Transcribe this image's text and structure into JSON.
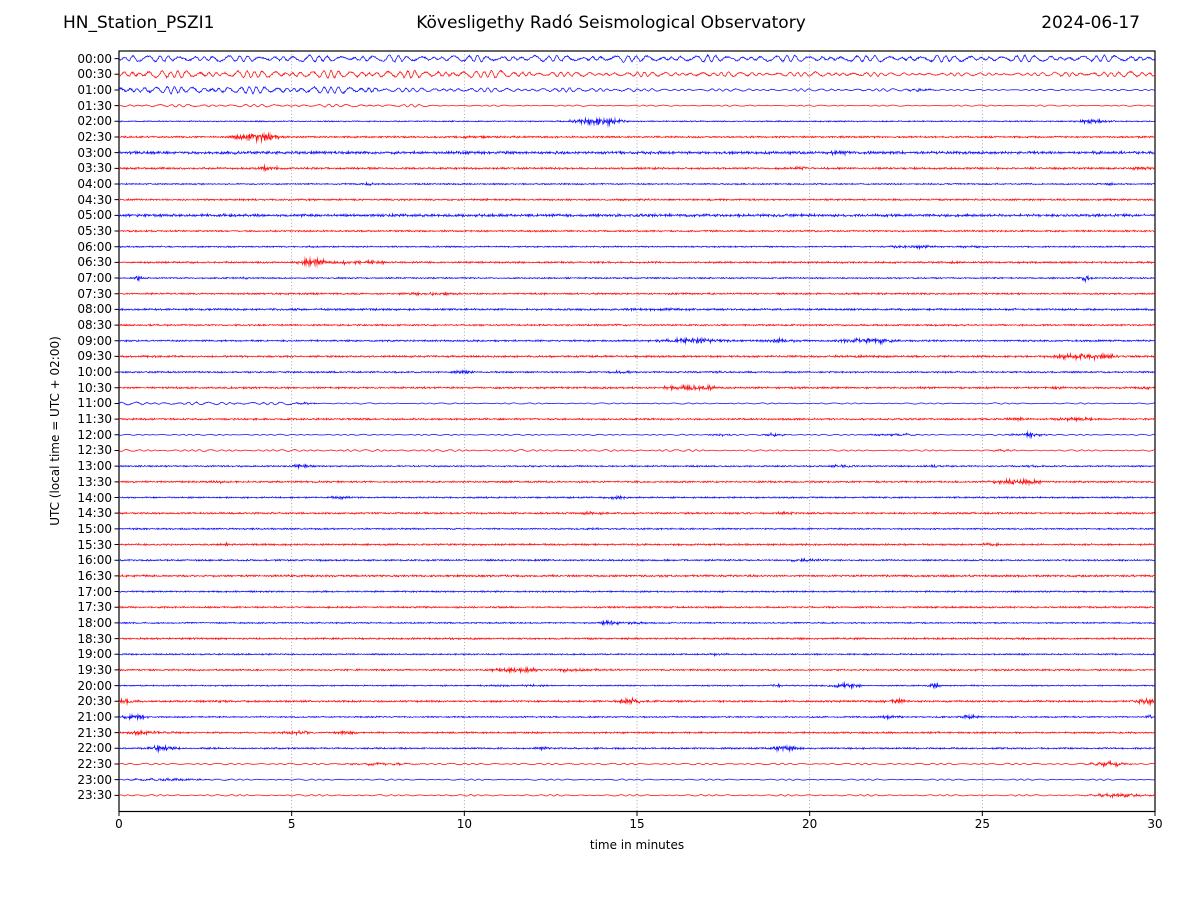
{
  "chart_data": {
    "type": "line",
    "subtype": "helicorder-daily-seismogram",
    "station": "HN_Station_PSZI1",
    "title": "Kövesligethy Radó Seismological Observatory",
    "date": "2024-06-17",
    "xlabel": "time in minutes",
    "ylabel": "UTC (local time = UTC + 02:00)",
    "xlim": [
      0,
      30
    ],
    "x_ticks": [
      0,
      5,
      10,
      15,
      20,
      25,
      30
    ],
    "grid_minutes": [
      5,
      10,
      15,
      20,
      25
    ],
    "grid_style": "dotted-vertical",
    "minutes_per_row": 30,
    "trace_colors": {
      "even_rows": "#0000ff",
      "odd_rows": "#ff0000"
    },
    "rows": [
      {
        "t": "00:00",
        "mode": "wave",
        "amp": [
          [
            0,
            30,
            3.4
          ]
        ],
        "events": []
      },
      {
        "t": "00:30",
        "mode": "wave",
        "amp": [
          [
            0,
            12,
            3.8
          ],
          [
            12,
            22,
            2.4
          ],
          [
            22,
            27,
            1.7
          ],
          [
            27,
            30,
            2.8
          ]
        ],
        "events": []
      },
      {
        "t": "01:00",
        "mode": "wave",
        "amp": [
          [
            0,
            7.5,
            3.6
          ],
          [
            7.5,
            15,
            2.1
          ],
          [
            15,
            23.5,
            1.3
          ],
          [
            23.5,
            30,
            0.8
          ]
        ],
        "events": [
          [
            23.2,
            0.3,
            1.2
          ]
        ]
      },
      {
        "t": "01:30",
        "mode": "wave",
        "amp": [
          [
            0,
            9,
            1.4
          ],
          [
            9,
            30,
            0.65
          ]
        ],
        "events": []
      },
      {
        "t": "02:00",
        "mode": "fuzz",
        "amp": [
          [
            0,
            30,
            0.5
          ]
        ],
        "events": [
          [
            13.9,
            0.7,
            3.4
          ],
          [
            28.2,
            0.6,
            1.5
          ]
        ]
      },
      {
        "t": "02:30",
        "mode": "fuzz",
        "amp": [
          [
            0,
            30,
            0.75
          ]
        ],
        "events": [
          [
            4.0,
            0.55,
            4.3
          ],
          [
            10.5,
            0.8,
            0.6
          ]
        ]
      },
      {
        "t": "03:00",
        "mode": "fuzz",
        "amp": [
          [
            0,
            30,
            1.15
          ]
        ],
        "events": [
          [
            3.4,
            0.3,
            0.8
          ],
          [
            20.9,
            0.4,
            1.1
          ]
        ]
      },
      {
        "t": "03:30",
        "mode": "fuzz",
        "amp": [
          [
            0,
            30,
            0.85
          ]
        ],
        "events": [
          [
            4.25,
            0.3,
            1.9
          ],
          [
            19.8,
            0.3,
            1.3
          ],
          [
            29.6,
            0.3,
            0.9
          ]
        ]
      },
      {
        "t": "04:00",
        "mode": "fuzz",
        "amp": [
          [
            0,
            30,
            0.6
          ]
        ],
        "events": [
          [
            7.2,
            0.2,
            0.9
          ],
          [
            28.7,
            0.15,
            1.1
          ]
        ]
      },
      {
        "t": "04:30",
        "mode": "fuzz",
        "amp": [
          [
            0,
            30,
            0.75
          ]
        ],
        "events": []
      },
      {
        "t": "05:00",
        "mode": "fuzz",
        "amp": [
          [
            0,
            30,
            1.15
          ]
        ],
        "events": []
      },
      {
        "t": "05:30",
        "mode": "fuzz",
        "amp": [
          [
            0,
            30,
            0.7
          ]
        ],
        "events": []
      },
      {
        "t": "06:00",
        "mode": "fuzz",
        "amp": [
          [
            0,
            30,
            0.6
          ]
        ],
        "events": [
          [
            3.3,
            0.1,
            0.7
          ],
          [
            5.6,
            0.1,
            0.7
          ],
          [
            23.1,
            0.7,
            1.3
          ],
          [
            24.6,
            0.3,
            1.2
          ]
        ]
      },
      {
        "t": "06:30",
        "mode": "fuzz",
        "amp": [
          [
            0,
            30,
            0.75
          ]
        ],
        "events": [
          [
            5.6,
            0.3,
            4.0
          ],
          [
            6.9,
            1.1,
            1.3
          ],
          [
            24.3,
            0.3,
            1.0
          ]
        ]
      },
      {
        "t": "07:00",
        "mode": "fuzz",
        "amp": [
          [
            0,
            30,
            0.6
          ]
        ],
        "events": [
          [
            0.55,
            0.12,
            2.5
          ],
          [
            3.6,
            0.1,
            1.1
          ],
          [
            28.0,
            0.12,
            3.0
          ]
        ]
      },
      {
        "t": "07:30",
        "mode": "fuzz",
        "amp": [
          [
            0,
            30,
            0.75
          ]
        ],
        "events": [
          [
            9.0,
            0.8,
            1.0
          ]
        ]
      },
      {
        "t": "08:00",
        "mode": "fuzz",
        "amp": [
          [
            0,
            30,
            0.8
          ]
        ],
        "events": [
          [
            15.8,
            0.9,
            0.8
          ]
        ]
      },
      {
        "t": "08:30",
        "mode": "fuzz",
        "amp": [
          [
            0,
            30,
            0.7
          ]
        ],
        "events": [
          [
            14.4,
            0.12,
            1.3
          ]
        ]
      },
      {
        "t": "09:00",
        "mode": "fuzz",
        "amp": [
          [
            0,
            30,
            0.75
          ]
        ],
        "events": [
          [
            16.6,
            0.8,
            2.5
          ],
          [
            19.2,
            0.6,
            1.5
          ],
          [
            21.7,
            0.7,
            2.4
          ],
          [
            27.2,
            0.1,
            1.0
          ]
        ]
      },
      {
        "t": "09:30",
        "mode": "fuzz",
        "amp": [
          [
            0,
            30,
            0.8
          ]
        ],
        "events": [
          [
            21.0,
            0.5,
            0.7
          ],
          [
            27.9,
            1.0,
            2.3
          ]
        ]
      },
      {
        "t": "10:00",
        "mode": "fuzz",
        "amp": [
          [
            0,
            30,
            0.7
          ]
        ],
        "events": [
          [
            10.0,
            0.3,
            1.3
          ],
          [
            14.4,
            0.4,
            1.3
          ],
          [
            17.2,
            0.2,
            0.8
          ]
        ]
      },
      {
        "t": "10:30",
        "mode": "fuzz",
        "amp": [
          [
            0,
            30,
            0.8
          ]
        ],
        "events": [
          [
            16.6,
            0.7,
            2.2
          ],
          [
            27.2,
            0.4,
            0.9
          ],
          [
            29.6,
            0.3,
            1.0
          ]
        ]
      },
      {
        "t": "11:00",
        "mode": "wave",
        "amp": [
          [
            0,
            5,
            1.5
          ],
          [
            5,
            30,
            0.65
          ]
        ],
        "events": [
          [
            5.4,
            0.3,
            0.9
          ]
        ]
      },
      {
        "t": "11:30",
        "mode": "fuzz",
        "amp": [
          [
            0,
            30,
            0.75
          ]
        ],
        "events": [
          [
            26.0,
            0.3,
            0.9
          ],
          [
            27.7,
            0.6,
            1.6
          ]
        ]
      },
      {
        "t": "12:00",
        "mode": "wave",
        "amp": [
          [
            0,
            30,
            0.6
          ]
        ],
        "events": [
          [
            17.4,
            0.3,
            1.1
          ],
          [
            19.0,
            0.3,
            1.4
          ],
          [
            22.3,
            0.7,
            1.0
          ],
          [
            26.3,
            0.45,
            1.9
          ]
        ]
      },
      {
        "t": "12:30",
        "mode": "wave",
        "amp": [
          [
            0,
            17,
            1.0
          ],
          [
            17,
            30,
            0.75
          ]
        ],
        "events": [
          [
            25.6,
            0.3,
            0.9
          ]
        ]
      },
      {
        "t": "13:00",
        "mode": "fuzz",
        "amp": [
          [
            0,
            30,
            0.65
          ]
        ],
        "events": [
          [
            5.3,
            0.35,
            1.3
          ],
          [
            21.0,
            0.4,
            1.2
          ],
          [
            23.6,
            0.4,
            0.9
          ],
          [
            26.5,
            0.3,
            0.9
          ]
        ]
      },
      {
        "t": "13:30",
        "mode": "fuzz",
        "amp": [
          [
            0,
            30,
            0.75
          ]
        ],
        "events": [
          [
            2.9,
            0.2,
            0.9
          ],
          [
            26.0,
            0.7,
            2.1
          ]
        ]
      },
      {
        "t": "14:00",
        "mode": "fuzz",
        "amp": [
          [
            0,
            30,
            0.65
          ]
        ],
        "events": [
          [
            6.3,
            0.4,
            0.9
          ],
          [
            14.5,
            0.25,
            1.7
          ]
        ]
      },
      {
        "t": "14:30",
        "mode": "fuzz",
        "amp": [
          [
            0,
            30,
            0.75
          ]
        ],
        "events": [
          [
            13.5,
            0.8,
            0.9
          ],
          [
            19.4,
            0.3,
            0.9
          ]
        ]
      },
      {
        "t": "15:00",
        "mode": "fuzz",
        "amp": [
          [
            0,
            30,
            0.65
          ]
        ],
        "events": [
          [
            13.8,
            0.3,
            0.8
          ]
        ]
      },
      {
        "t": "15:30",
        "mode": "fuzz",
        "amp": [
          [
            0,
            30,
            0.75
          ]
        ],
        "events": [
          [
            3.1,
            0.1,
            1.4
          ],
          [
            25.3,
            0.4,
            0.8
          ]
        ]
      },
      {
        "t": "16:00",
        "mode": "fuzz",
        "amp": [
          [
            0,
            30,
            0.7
          ]
        ],
        "events": [
          [
            19.8,
            0.6,
            1.1
          ]
        ]
      },
      {
        "t": "16:30",
        "mode": "fuzz",
        "amp": [
          [
            0,
            30,
            0.85
          ]
        ],
        "events": []
      },
      {
        "t": "17:00",
        "mode": "fuzz",
        "amp": [
          [
            0,
            30,
            0.65
          ]
        ],
        "events": []
      },
      {
        "t": "17:30",
        "mode": "fuzz",
        "amp": [
          [
            0,
            30,
            0.7
          ]
        ],
        "events": []
      },
      {
        "t": "18:00",
        "mode": "fuzz",
        "amp": [
          [
            0,
            30,
            0.6
          ]
        ],
        "events": [
          [
            14.2,
            0.3,
            2.1
          ],
          [
            14.9,
            0.5,
            0.8
          ]
        ]
      },
      {
        "t": "18:30",
        "mode": "fuzz",
        "amp": [
          [
            0,
            30,
            0.75
          ]
        ],
        "events": []
      },
      {
        "t": "19:00",
        "mode": "fuzz",
        "amp": [
          [
            0,
            30,
            0.6
          ]
        ],
        "events": [
          [
            17.3,
            0.3,
            0.7
          ]
        ]
      },
      {
        "t": "19:30",
        "mode": "fuzz",
        "amp": [
          [
            0,
            30,
            0.7
          ]
        ],
        "events": [
          [
            11.5,
            0.7,
            2.1
          ],
          [
            13.2,
            1.0,
            1.0
          ]
        ]
      },
      {
        "t": "20:00",
        "mode": "fuzz",
        "amp": [
          [
            0,
            30,
            0.55
          ]
        ],
        "events": [
          [
            11.5,
            1.2,
            0.6
          ],
          [
            19.0,
            0.2,
            1.7
          ],
          [
            21.0,
            0.5,
            2.1
          ],
          [
            23.6,
            0.2,
            1.4
          ]
        ]
      },
      {
        "t": "20:30",
        "mode": "fuzz",
        "amp": [
          [
            0,
            30,
            0.8
          ]
        ],
        "events": [
          [
            0.15,
            0.3,
            2.3
          ],
          [
            2.95,
            0.3,
            1.1
          ],
          [
            14.9,
            0.6,
            2.1
          ],
          [
            22.5,
            0.4,
            1.7
          ],
          [
            29.7,
            0.4,
            2.1
          ]
        ]
      },
      {
        "t": "21:00",
        "mode": "fuzz",
        "amp": [
          [
            0,
            30,
            0.6
          ]
        ],
        "events": [
          [
            0.45,
            0.4,
            2.4
          ],
          [
            22.4,
            0.5,
            1.0
          ],
          [
            24.6,
            0.3,
            1.4
          ],
          [
            29.9,
            0.2,
            1.3
          ]
        ]
      },
      {
        "t": "21:30",
        "mode": "fuzz",
        "amp": [
          [
            0,
            30,
            0.7
          ]
        ],
        "events": [
          [
            0.8,
            0.5,
            1.7
          ],
          [
            5.2,
            0.4,
            1.4
          ],
          [
            6.6,
            0.3,
            1.2
          ],
          [
            23.7,
            0.12,
            0.9
          ]
        ]
      },
      {
        "t": "22:00",
        "mode": "fuzz",
        "amp": [
          [
            0,
            30,
            0.7
          ]
        ],
        "events": [
          [
            1.2,
            0.5,
            1.9
          ],
          [
            12.2,
            0.2,
            1.1
          ],
          [
            19.2,
            0.5,
            1.9
          ]
        ]
      },
      {
        "t": "22:30",
        "mode": "wave",
        "amp": [
          [
            0,
            30,
            0.85
          ]
        ],
        "events": [
          [
            7.5,
            1.0,
            1.0
          ],
          [
            28.7,
            0.5,
            1.9
          ]
        ]
      },
      {
        "t": "23:00",
        "mode": "wave",
        "amp": [
          [
            0,
            30,
            0.7
          ]
        ],
        "events": [
          [
            1.5,
            1.2,
            0.9
          ]
        ]
      },
      {
        "t": "23:30",
        "mode": "wave",
        "amp": [
          [
            0,
            30,
            0.8
          ]
        ],
        "events": [
          [
            29.0,
            0.8,
            1.4
          ]
        ]
      }
    ]
  }
}
